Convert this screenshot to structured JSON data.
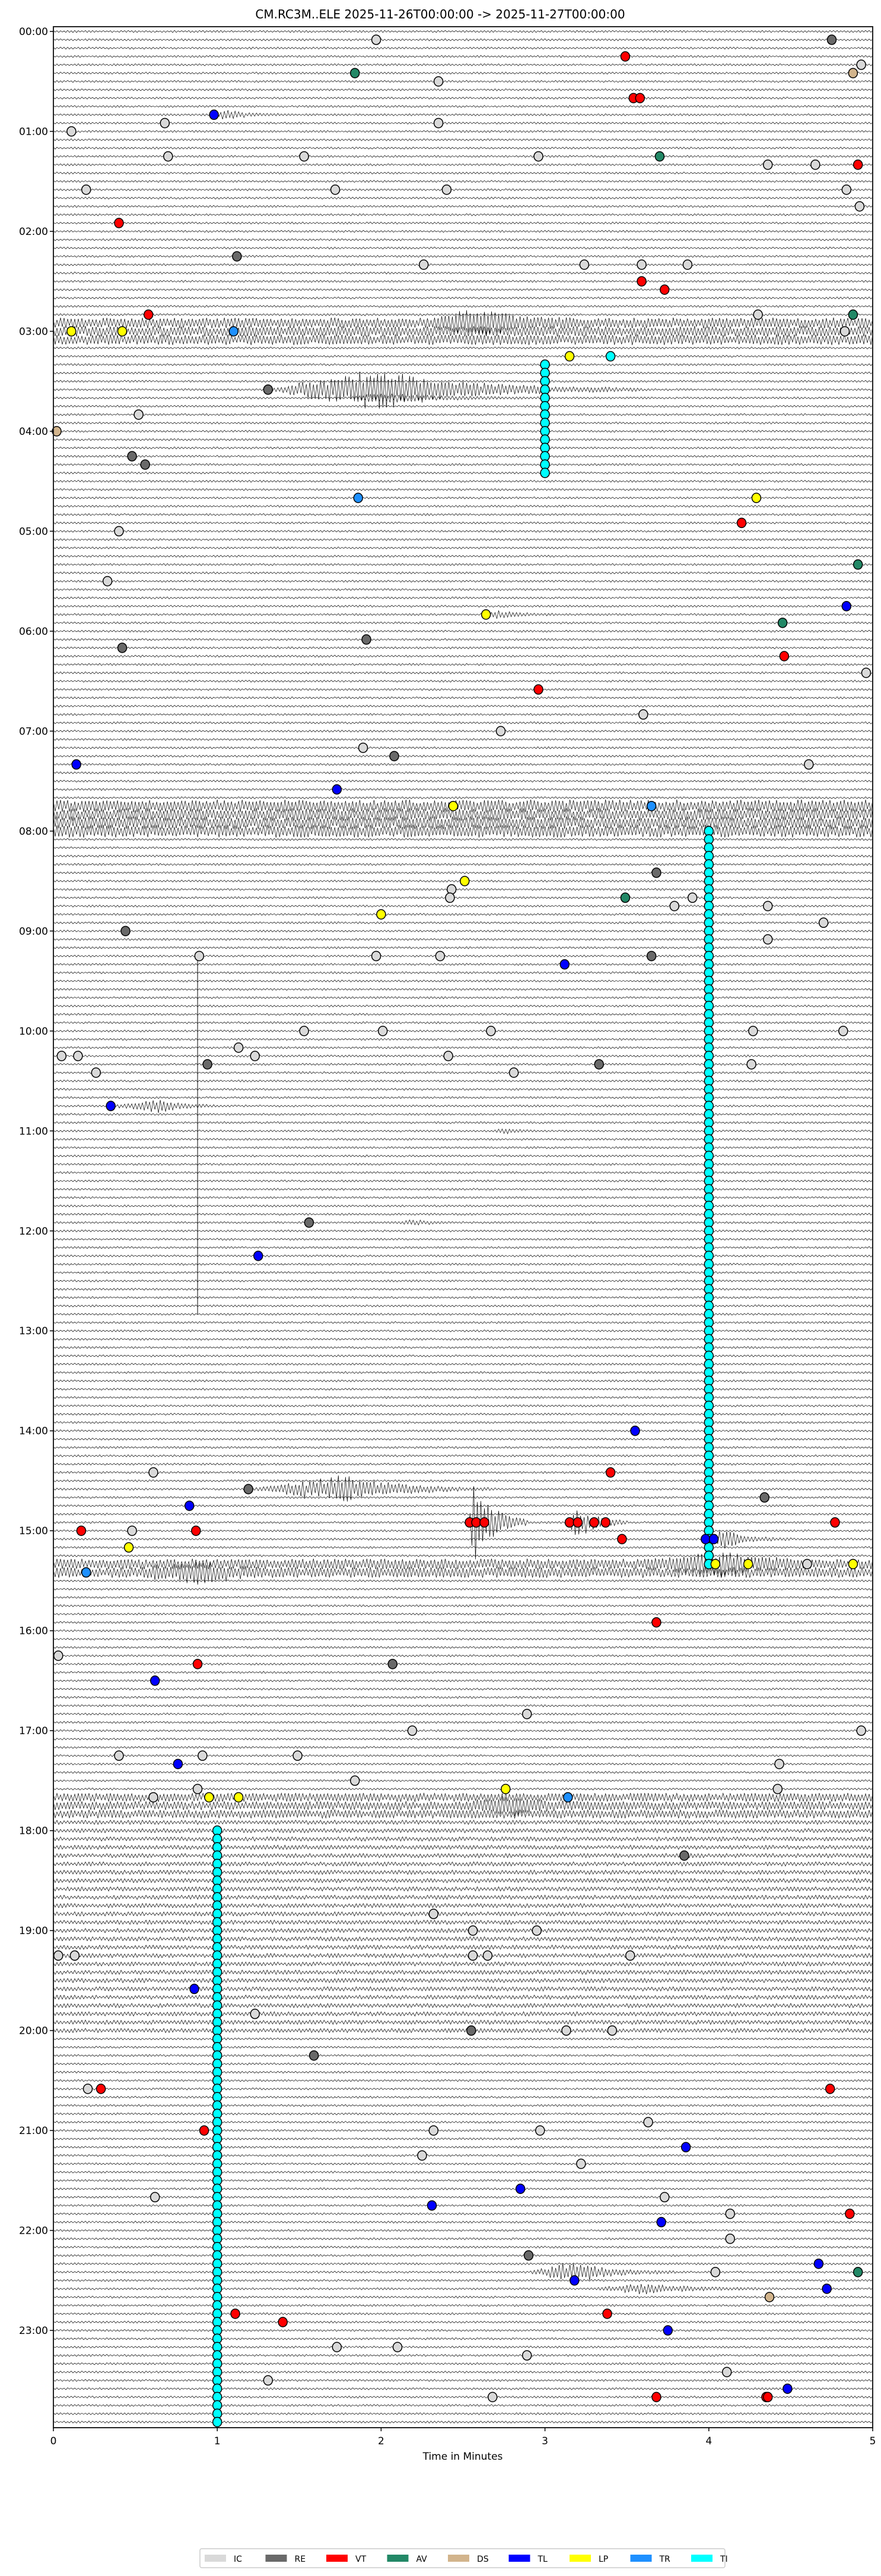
{
  "chart_data": {
    "type": "scatter",
    "subtype": "helicorder",
    "title": "CM.RC3M..ELE  2025-11-26T00:00:00 -> 2025-11-27T00:00:00",
    "xlabel": "Time in Minutes",
    "xlim": [
      0,
      5
    ],
    "xticks": [
      "0",
      "1",
      "2",
      "3",
      "4",
      "5"
    ],
    "minutes_per_line": 5,
    "line_count": 288,
    "hour_labels": [
      "00:00",
      "01:00",
      "02:00",
      "03:00",
      "04:00",
      "05:00",
      "06:00",
      "07:00",
      "08:00",
      "09:00",
      "10:00",
      "11:00",
      "12:00",
      "13:00",
      "14:00",
      "15:00",
      "16:00",
      "17:00",
      "18:00",
      "19:00",
      "20:00",
      "21:00",
      "22:00",
      "23:00"
    ],
    "legend": {
      "placement": "bottom-center",
      "entries": [
        {
          "label": "IC",
          "color": "#d9d9d9"
        },
        {
          "label": "RE",
          "color": "#696969"
        },
        {
          "label": "VT",
          "color": "#ff0000"
        },
        {
          "label": "AV",
          "color": "#228866"
        },
        {
          "label": "DS",
          "color": "#d2b48c"
        },
        {
          "label": "TL",
          "color": "#0000ff"
        },
        {
          "label": "LP",
          "color": "#ffff00"
        },
        {
          "label": "TR",
          "color": "#1e90ff"
        },
        {
          "label": "TI",
          "color": "#00ffff"
        }
      ]
    },
    "picks_fields": [
      "line_index",
      "minute",
      "class"
    ],
    "picks": [
      [
        1,
        1.97,
        "IC"
      ],
      [
        1,
        4.75,
        "RE"
      ],
      [
        3,
        3.49,
        "VT"
      ],
      [
        4,
        4.93,
        "IC"
      ],
      [
        5,
        4.88,
        "DS"
      ],
      [
        5,
        1.84,
        "AV"
      ],
      [
        6,
        2.35,
        "IC"
      ],
      [
        8,
        3.54,
        "VT"
      ],
      [
        8,
        3.58,
        "VT"
      ],
      [
        10,
        0.98,
        "TL"
      ],
      [
        11,
        0.68,
        "IC"
      ],
      [
        11,
        2.35,
        "IC"
      ],
      [
        12,
        0.11,
        "IC"
      ],
      [
        15,
        0.7,
        "IC"
      ],
      [
        15,
        1.53,
        "IC"
      ],
      [
        15,
        2.96,
        "IC"
      ],
      [
        15,
        3.7,
        "AV"
      ],
      [
        16,
        4.36,
        "IC"
      ],
      [
        16,
        4.65,
        "IC"
      ],
      [
        16,
        4.91,
        "VT"
      ],
      [
        19,
        0.2,
        "IC"
      ],
      [
        19,
        1.72,
        "IC"
      ],
      [
        19,
        2.4,
        "IC"
      ],
      [
        19,
        4.84,
        "IC"
      ],
      [
        21,
        4.92,
        "IC"
      ],
      [
        23,
        0.4,
        "VT"
      ],
      [
        27,
        1.12,
        "RE"
      ],
      [
        28,
        2.26,
        "IC"
      ],
      [
        28,
        3.24,
        "IC"
      ],
      [
        28,
        3.59,
        "IC"
      ],
      [
        28,
        3.87,
        "IC"
      ],
      [
        30,
        3.59,
        "VT"
      ],
      [
        31,
        3.73,
        "VT"
      ],
      [
        34,
        0.58,
        "VT"
      ],
      [
        34,
        4.3,
        "IC"
      ],
      [
        34,
        4.88,
        "AV"
      ],
      [
        36,
        0.11,
        "LP"
      ],
      [
        36,
        0.42,
        "LP"
      ],
      [
        36,
        1.1,
        "TR"
      ],
      [
        36,
        4.83,
        "IC"
      ],
      [
        39,
        3.15,
        "LP"
      ],
      [
        39,
        3.4,
        "TI"
      ],
      [
        43,
        1.31,
        "RE"
      ],
      [
        46,
        0.52,
        "IC"
      ],
      [
        48,
        0.02,
        "DS"
      ],
      [
        51,
        0.48,
        "RE"
      ],
      [
        52,
        0.56,
        "RE"
      ],
      [
        56,
        4.29,
        "LP"
      ],
      [
        56,
        1.86,
        "TR"
      ],
      [
        59,
        4.2,
        "VT"
      ],
      [
        60,
        0.4,
        "IC"
      ],
      [
        64,
        4.91,
        "AV"
      ],
      [
        66,
        0.33,
        "IC"
      ],
      [
        69,
        4.84,
        "TL"
      ],
      [
        70,
        2.64,
        "LP"
      ],
      [
        71,
        4.45,
        "AV"
      ],
      [
        73,
        1.91,
        "RE"
      ],
      [
        74,
        0.42,
        "RE"
      ],
      [
        75,
        4.46,
        "VT"
      ],
      [
        77,
        4.96,
        "IC"
      ],
      [
        79,
        2.96,
        "VT"
      ],
      [
        82,
        3.6,
        "IC"
      ],
      [
        84,
        2.73,
        "IC"
      ],
      [
        86,
        1.89,
        "IC"
      ],
      [
        87,
        2.08,
        "RE"
      ],
      [
        88,
        4.61,
        "IC"
      ],
      [
        88,
        0.14,
        "TL"
      ],
      [
        91,
        1.73,
        "TL"
      ],
      [
        93,
        2.44,
        "LP"
      ],
      [
        93,
        3.65,
        "TR"
      ],
      [
        101,
        3.68,
        "RE"
      ],
      [
        102,
        2.51,
        "LP"
      ],
      [
        103,
        2.43,
        "IC"
      ],
      [
        104,
        2.42,
        "IC"
      ],
      [
        104,
        3.49,
        "AV"
      ],
      [
        105,
        3.79,
        "IC"
      ],
      [
        104,
        3.9,
        "IC"
      ],
      [
        105,
        4.36,
        "IC"
      ],
      [
        106,
        2.0,
        "LP"
      ],
      [
        108,
        0.44,
        "RE"
      ],
      [
        107,
        4.7,
        "IC"
      ],
      [
        109,
        4.36,
        "IC"
      ],
      [
        111,
        0.89,
        "IC"
      ],
      [
        111,
        1.97,
        "IC"
      ],
      [
        111,
        2.36,
        "IC"
      ],
      [
        111,
        3.65,
        "RE"
      ],
      [
        112,
        3.12,
        "TL"
      ],
      [
        120,
        1.53,
        "IC"
      ],
      [
        120,
        2.01,
        "IC"
      ],
      [
        120,
        2.67,
        "IC"
      ],
      [
        120,
        4.27,
        "IC"
      ],
      [
        120,
        4.82,
        "IC"
      ],
      [
        122,
        1.13,
        "IC"
      ],
      [
        123,
        1.23,
        "IC"
      ],
      [
        123,
        0.05,
        "IC"
      ],
      [
        123,
        0.15,
        "IC"
      ],
      [
        123,
        2.41,
        "IC"
      ],
      [
        124,
        0.94,
        "RE"
      ],
      [
        124,
        3.33,
        "RE"
      ],
      [
        124,
        4.26,
        "IC"
      ],
      [
        125,
        2.81,
        "IC"
      ],
      [
        125,
        0.26,
        "IC"
      ],
      [
        129,
        0.35,
        "TL"
      ],
      [
        143,
        1.56,
        "RE"
      ],
      [
        147,
        1.25,
        "TL"
      ],
      [
        168,
        3.55,
        "TL"
      ],
      [
        173,
        3.4,
        "VT"
      ],
      [
        173,
        0.61,
        "IC"
      ],
      [
        175,
        1.19,
        "RE"
      ],
      [
        176,
        4.34,
        "RE"
      ],
      [
        177,
        0.83,
        "TL"
      ],
      [
        180,
        0.17,
        "VT"
      ],
      [
        180,
        0.48,
        "IC"
      ],
      [
        180,
        0.87,
        "VT"
      ],
      [
        179,
        2.54,
        "VT"
      ],
      [
        179,
        2.58,
        "VT"
      ],
      [
        179,
        2.63,
        "VT"
      ],
      [
        179,
        3.15,
        "VT"
      ],
      [
        179,
        3.2,
        "VT"
      ],
      [
        179,
        3.3,
        "VT"
      ],
      [
        179,
        3.37,
        "VT"
      ],
      [
        181,
        3.47,
        "VT"
      ],
      [
        179,
        4.77,
        "VT"
      ],
      [
        181,
        3.98,
        "TL"
      ],
      [
        181,
        4.03,
        "TL"
      ],
      [
        182,
        0.46,
        "LP"
      ],
      [
        184,
        4.04,
        "LP"
      ],
      [
        184,
        4.24,
        "LP"
      ],
      [
        184,
        4.6,
        "IC"
      ],
      [
        184,
        4.88,
        "LP"
      ],
      [
        185,
        0.2,
        "TR"
      ],
      [
        191,
        3.68,
        "VT"
      ],
      [
        195,
        0.03,
        "IC"
      ],
      [
        196,
        0.88,
        "VT"
      ],
      [
        196,
        2.07,
        "RE"
      ],
      [
        198,
        0.62,
        "TL"
      ],
      [
        202,
        2.89,
        "IC"
      ],
      [
        204,
        4.93,
        "IC"
      ],
      [
        204,
        2.19,
        "IC"
      ],
      [
        207,
        0.4,
        "IC"
      ],
      [
        207,
        1.49,
        "IC"
      ],
      [
        207,
        0.91,
        "IC"
      ],
      [
        208,
        0.76,
        "TL"
      ],
      [
        208,
        4.43,
        "IC"
      ],
      [
        210,
        1.84,
        "IC"
      ],
      [
        212,
        0.61,
        "IC"
      ],
      [
        211,
        0.88,
        "IC"
      ],
      [
        211,
        2.76,
        "LP"
      ],
      [
        211,
        4.42,
        "IC"
      ],
      [
        212,
        0.95,
        "LP"
      ],
      [
        212,
        1.13,
        "LP"
      ],
      [
        212,
        3.14,
        "TR"
      ],
      [
        219,
        3.85,
        "RE"
      ],
      [
        228,
        2.56,
        "IC"
      ],
      [
        228,
        2.95,
        "IC"
      ],
      [
        226,
        2.32,
        "IC"
      ],
      [
        231,
        0.03,
        "IC"
      ],
      [
        231,
        0.13,
        "IC"
      ],
      [
        231,
        2.56,
        "IC"
      ],
      [
        231,
        2.65,
        "IC"
      ],
      [
        231,
        3.52,
        "IC"
      ],
      [
        235,
        0.86,
        "TL"
      ],
      [
        238,
        1.23,
        "IC"
      ],
      [
        240,
        2.55,
        "RE"
      ],
      [
        240,
        3.13,
        "IC"
      ],
      [
        240,
        3.41,
        "IC"
      ],
      [
        243,
        1.59,
        "RE"
      ],
      [
        247,
        0.21,
        "IC"
      ],
      [
        247,
        0.29,
        "VT"
      ],
      [
        247,
        4.74,
        "VT"
      ],
      [
        252,
        0.92,
        "VT"
      ],
      [
        252,
        2.32,
        "IC"
      ],
      [
        252,
        2.97,
        "IC"
      ],
      [
        251,
        3.63,
        "IC"
      ],
      [
        254,
        3.86,
        "TL"
      ],
      [
        255,
        2.25,
        "IC"
      ],
      [
        256,
        3.22,
        "IC"
      ],
      [
        259,
        2.85,
        "TL"
      ],
      [
        260,
        3.73,
        "IC"
      ],
      [
        261,
        2.31,
        "TL"
      ],
      [
        260,
        0.62,
        "IC"
      ],
      [
        262,
        4.86,
        "VT"
      ],
      [
        262,
        4.13,
        "IC"
      ],
      [
        263,
        3.71,
        "TL"
      ],
      [
        265,
        4.13,
        "IC"
      ],
      [
        267,
        2.9,
        "RE"
      ],
      [
        268,
        4.67,
        "TL"
      ],
      [
        269,
        4.91,
        "AV"
      ],
      [
        269,
        4.04,
        "IC"
      ],
      [
        270,
        3.18,
        "TL"
      ],
      [
        271,
        4.72,
        "TL"
      ],
      [
        272,
        4.37,
        "DS"
      ],
      [
        274,
        3.38,
        "VT"
      ],
      [
        274,
        1.11,
        "VT"
      ],
      [
        275,
        1.4,
        "VT"
      ],
      [
        276,
        3.75,
        "TL"
      ],
      [
        278,
        1.73,
        "IC"
      ],
      [
        278,
        2.1,
        "IC"
      ],
      [
        279,
        2.89,
        "IC"
      ],
      [
        281,
        4.11,
        "IC"
      ],
      [
        282,
        1.31,
        "IC"
      ],
      [
        283,
        4.48,
        "TL"
      ],
      [
        284,
        2.68,
        "IC"
      ],
      [
        284,
        3.68,
        "VT"
      ],
      [
        284,
        4.35,
        "VT"
      ],
      [
        284,
        4.36,
        "VT"
      ]
    ],
    "tremor_runs": [
      {
        "class": "TI",
        "minute": 3.0,
        "from_line": 40,
        "to_line": 53
      },
      {
        "class": "TI",
        "minute": 4.0,
        "from_line": 96,
        "to_line": 184
      },
      {
        "class": "TI",
        "minute": 1.0,
        "from_line": 216,
        "to_line": 287
      }
    ],
    "noise_bands": [
      {
        "from_line": 0,
        "to_line": 287,
        "level": 1
      },
      {
        "from_line": 35,
        "to_line": 37,
        "level": 5
      },
      {
        "from_line": 93,
        "to_line": 96,
        "level": 6
      },
      {
        "from_line": 184,
        "to_line": 185,
        "level": 5
      },
      {
        "from_line": 212,
        "to_line": 214,
        "level": 4
      },
      {
        "from_line": 215,
        "to_line": 240,
        "level": 2
      }
    ],
    "signals": [
      {
        "line": 10,
        "start": 0.98,
        "peak": 1.05,
        "end": 1.45,
        "amp": 0.6
      },
      {
        "line": 35,
        "start": 2.3,
        "peak": 2.6,
        "end": 3.2,
        "amp": 1.4
      },
      {
        "line": 43,
        "start": 1.3,
        "peak": 1.94,
        "end": 3.6,
        "amp": 2.6
      },
      {
        "line": 44,
        "start": 1.8,
        "peak": 2.0,
        "end": 3.0,
        "amp": 0.6
      },
      {
        "line": 70,
        "start": 2.64,
        "peak": 2.7,
        "end": 3.1,
        "amp": 0.5
      },
      {
        "line": 129,
        "start": 0.35,
        "peak": 0.65,
        "end": 1.0,
        "amp": 0.9
      },
      {
        "line": 132,
        "start": 2.7,
        "peak": 2.75,
        "end": 2.95,
        "amp": 0.4
      },
      {
        "line": 143,
        "start": 2.1,
        "peak": 2.2,
        "end": 2.5,
        "amp": 0.3
      },
      {
        "line": 175,
        "start": 1.2,
        "peak": 1.8,
        "end": 2.7,
        "amp": 1.7
      },
      {
        "line": 179,
        "start": 2.54,
        "peak": 2.56,
        "end": 2.9,
        "amp": 5.5
      },
      {
        "line": 179,
        "start": 3.15,
        "peak": 3.18,
        "end": 3.5,
        "amp": 2.6
      },
      {
        "line": 181,
        "start": 4.0,
        "peak": 4.08,
        "end": 4.5,
        "amp": 1.2
      },
      {
        "line": 185,
        "start": 0.5,
        "peak": 0.9,
        "end": 1.4,
        "amp": 1.0
      },
      {
        "line": 184,
        "start": 3.6,
        "peak": 4.1,
        "end": 4.7,
        "amp": 1.2
      },
      {
        "line": 213,
        "start": 2.5,
        "peak": 2.8,
        "end": 3.3,
        "amp": 1.0
      },
      {
        "line": 269,
        "start": 2.9,
        "peak": 3.2,
        "end": 3.8,
        "amp": 1.3
      },
      {
        "line": 271,
        "start": 3.3,
        "peak": 3.6,
        "end": 4.4,
        "amp": 0.6
      }
    ],
    "glitches": [
      {
        "line": 111,
        "minute": 0.88,
        "extent_lines": 43
      }
    ]
  }
}
